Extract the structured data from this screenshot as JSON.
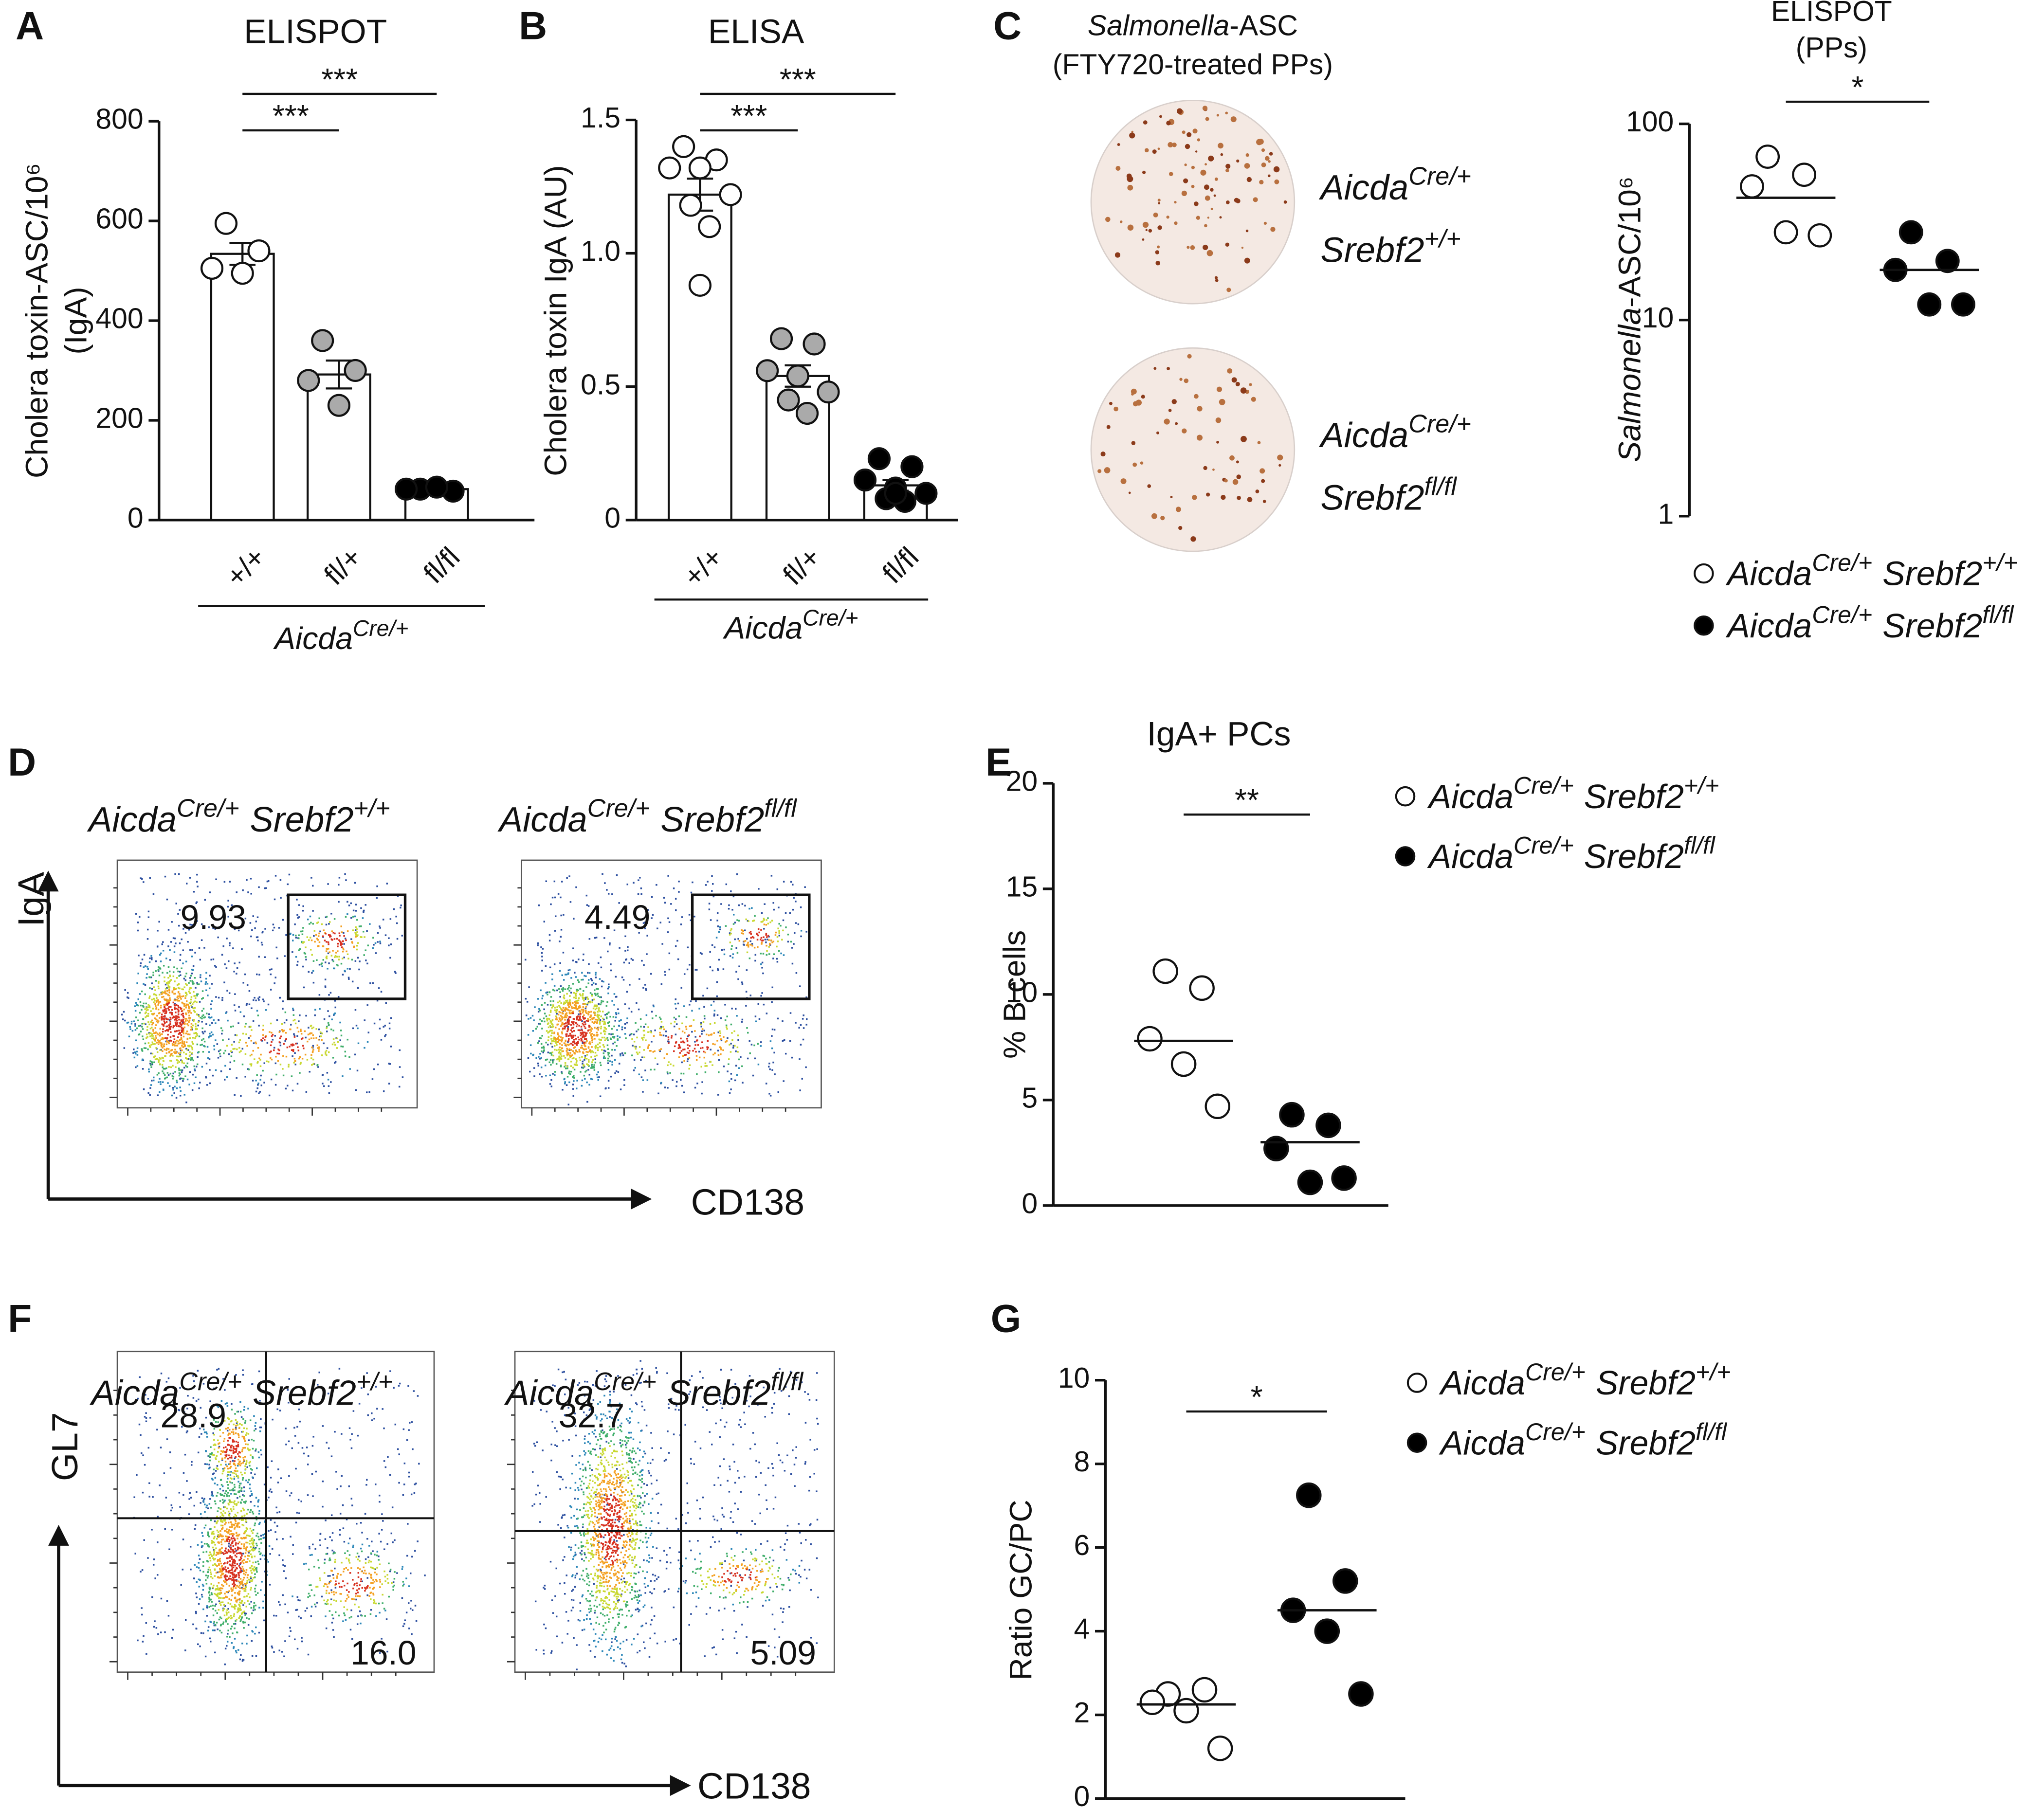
{
  "panel_labels": [
    "A",
    "B",
    "C",
    "D",
    "E",
    "F",
    "G"
  ],
  "image_panel": {
    "title": [
      {
        "text": "Salmonella",
        "style": "italic"
      },
      {
        "text": "-ASC"
      }
    ],
    "subtitle": "(FTY720-treated PPs)",
    "wells": [
      [
        [
          {
            "text": "Aicda",
            "style": "italic"
          },
          {
            "text": "Cre/+",
            "style": "italic sup"
          }
        ],
        [
          {
            "text": "Srebf2",
            "style": "italic"
          },
          {
            "text": "+/+",
            "style": "italic sup"
          }
        ]
      ],
      [
        [
          {
            "text": "Aicda",
            "style": "italic"
          },
          {
            "text": "Cre/+",
            "style": "italic sup"
          }
        ],
        [
          {
            "text": "Srebf2",
            "style": "italic"
          },
          {
            "text": "fl/fl",
            "style": "italic sup"
          }
        ]
      ]
    ]
  },
  "flow": [
    {
      "x_axis": "CD138",
      "y_axis": "IgA",
      "plots": [
        {
          "title": [
            {
              "text": "Aicda",
              "style": "italic"
            },
            {
              "text": "Cre/+",
              "style": "italic sup"
            },
            {
              "text": "Srebf2",
              "style": "italic"
            },
            {
              "text": "+/+",
              "style": "italic sup"
            }
          ],
          "gates": [
            "9.93"
          ]
        },
        {
          "title": [
            {
              "text": "Aicda",
              "style": "italic"
            },
            {
              "text": "Cre/+",
              "style": "italic sup"
            },
            {
              "text": "Srebf2",
              "style": "italic"
            },
            {
              "text": "fl/fl",
              "style": "italic sup"
            }
          ],
          "gates": [
            "4.49"
          ]
        }
      ]
    },
    {
      "x_axis": "CD138",
      "y_axis": "GL7",
      "plots": [
        {
          "title": [
            {
              "text": "Aicda",
              "style": "italic"
            },
            {
              "text": "Cre/+",
              "style": "italic sup"
            },
            {
              "text": "Srebf2",
              "style": "italic"
            },
            {
              "text": "+/+",
              "style": "italic sup"
            }
          ],
          "gates": [
            "28.9",
            "16.0"
          ]
        },
        {
          "title": [
            {
              "text": "Aicda",
              "style": "italic"
            },
            {
              "text": "Cre/+",
              "style": "italic sup"
            },
            {
              "text": "Srebf2",
              "style": "italic"
            },
            {
              "text": "fl/fl",
              "style": "italic sup"
            }
          ],
          "gates": [
            "32.7",
            "5.09"
          ]
        }
      ]
    }
  ],
  "chart_data": [
    {
      "type": "bar",
      "title": "ELISPOT",
      "ylabel": [
        [
          {
            "text": "Cholera toxin-ASC/10⁶"
          }
        ],
        [
          {
            "text": "(IgA)"
          }
        ]
      ],
      "categories": [
        "+/+",
        "fl/+",
        "fl/fl"
      ],
      "group_label": [
        {
          "text": "Aicda",
          "style": "italic"
        },
        {
          "text": "Cre/+",
          "style": "italic sup"
        }
      ],
      "values": [
        534,
        292,
        62
      ],
      "errors": [
        22,
        28,
        4
      ],
      "points": [
        [
          595,
          540,
          505,
          495
        ],
        [
          360,
          300,
          280,
          230
        ],
        [
          62,
          58,
          62,
          66
        ]
      ],
      "bar_color": "#ffffff",
      "point_colors": [
        "#ffffff",
        "#aaaaaa",
        "#000000"
      ],
      "ylim": [
        0,
        800
      ],
      "yticks": [
        0,
        200,
        400,
        600,
        800
      ],
      "significance": [
        {
          "pair": [
            0,
            1
          ],
          "label": "***"
        },
        {
          "pair": [
            0,
            2
          ],
          "label": "***"
        }
      ]
    },
    {
      "type": "bar",
      "title": "ELISA",
      "ylabel": [
        [
          {
            "text": "Cholera toxin IgA (AU)"
          }
        ]
      ],
      "categories": [
        "+/+",
        "fl/+",
        "fl/fl"
      ],
      "group_label": [
        {
          "text": "Aicda",
          "style": "italic"
        },
        {
          "text": "Cre/+",
          "style": "italic sup"
        }
      ],
      "values": [
        1.22,
        0.54,
        0.13
      ],
      "errors": [
        0.06,
        0.04,
        0.02
      ],
      "points": [
        [
          1.4,
          1.35,
          1.32,
          1.32,
          1.22,
          1.18,
          1.1,
          0.88
        ],
        [
          0.68,
          0.66,
          0.56,
          0.54,
          0.48,
          0.45,
          0.4
        ],
        [
          0.23,
          0.2,
          0.15,
          0.12,
          0.1,
          0.08,
          0.07,
          0.1
        ]
      ],
      "bar_color": "#ffffff",
      "point_colors": [
        "#ffffff",
        "#aaaaaa",
        "#000000"
      ],
      "ylim": [
        0,
        1.5
      ],
      "yticks": [
        0,
        0.5,
        {
          "value": 1,
          "label": "1.0"
        },
        1.5
      ],
      "significance": [
        {
          "pair": [
            0,
            1
          ],
          "label": "***"
        },
        {
          "pair": [
            0,
            2
          ],
          "label": "***"
        }
      ]
    },
    {
      "type": "dot",
      "title": [
        "ELISPOT",
        "(PPs)"
      ],
      "ylabel": [
        [
          {
            "text": "Salmonella",
            "style": "italic"
          },
          {
            "text": "-ASC/10⁶"
          }
        ]
      ],
      "log": true,
      "ylim": [
        1,
        100
      ],
      "yticks": [
        1,
        10,
        100
      ],
      "series": [
        {
          "label": [
            {
              "text": "Aicda",
              "style": "italic"
            },
            {
              "text": "Cre/+",
              "style": "italic sup"
            },
            {
              "text": "Srebf2",
              "style": "italic"
            },
            {
              "text": "+/+",
              "style": "italic sup"
            }
          ],
          "color": "#ffffff",
          "values": [
            68,
            55,
            48,
            28,
            27
          ],
          "center": 42
        },
        {
          "label": [
            {
              "text": "Aicda",
              "style": "italic"
            },
            {
              "text": "Cre/+",
              "style": "italic sup"
            },
            {
              "text": "Srebf2",
              "style": "italic"
            },
            {
              "text": "fl/fl",
              "style": "italic sup"
            }
          ],
          "color": "#000000",
          "values": [
            28,
            20,
            18,
            12,
            12
          ],
          "center": 18
        }
      ],
      "significance": [
        {
          "pair": [
            0,
            1
          ],
          "label": "*"
        }
      ]
    },
    {
      "type": "dot",
      "title": "IgA+ PCs",
      "ylabel": [
        [
          {
            "text": "% B cells"
          }
        ]
      ],
      "ylim": [
        0,
        20
      ],
      "yticks": [
        0,
        5,
        10,
        15,
        20
      ],
      "series": [
        {
          "label": [
            {
              "text": "Aicda",
              "style": "italic"
            },
            {
              "text": "Cre/+",
              "style": "italic sup"
            },
            {
              "text": "Srebf2",
              "style": "italic"
            },
            {
              "text": "+/+",
              "style": "italic sup"
            }
          ],
          "color": "#ffffff",
          "values": [
            11.1,
            10.3,
            7.9,
            6.7,
            4.7
          ],
          "center": 7.8
        },
        {
          "label": [
            {
              "text": "Aicda",
              "style": "italic"
            },
            {
              "text": "Cre/+",
              "style": "italic sup"
            },
            {
              "text": "Srebf2",
              "style": "italic"
            },
            {
              "text": "fl/fl",
              "style": "italic sup"
            }
          ],
          "color": "#000000",
          "values": [
            4.3,
            3.8,
            2.7,
            1.1,
            1.3
          ],
          "center": 3
        }
      ],
      "significance": [
        {
          "pair": [
            0,
            1
          ],
          "label": "**"
        }
      ]
    },
    {
      "type": "dot",
      "ylabel": [
        [
          {
            "text": "Ratio GC/PC"
          }
        ]
      ],
      "ylim": [
        0,
        10
      ],
      "yticks": [
        0,
        2,
        4,
        6,
        8,
        10
      ],
      "series": [
        {
          "label": [
            {
              "text": "Aicda",
              "style": "italic"
            },
            {
              "text": "Cre/+",
              "style": "italic sup"
            },
            {
              "text": "Srebf2",
              "style": "italic"
            },
            {
              "text": "+/+",
              "style": "italic sup"
            }
          ],
          "color": "#ffffff",
          "values": [
            2.5,
            2.6,
            2.3,
            2.1,
            1.2
          ],
          "center": 2.25
        },
        {
          "label": [
            {
              "text": "Aicda",
              "style": "italic"
            },
            {
              "text": "Cre/+",
              "style": "italic sup"
            },
            {
              "text": "Srebf2",
              "style": "italic"
            },
            {
              "text": "fl/fl",
              "style": "italic sup"
            }
          ],
          "color": "#000000",
          "values": [
            7.25,
            5.2,
            4.5,
            4,
            2.5
          ],
          "center": 4.5
        }
      ],
      "significance": [
        {
          "pair": [
            0,
            1
          ],
          "label": "*"
        }
      ]
    }
  ]
}
